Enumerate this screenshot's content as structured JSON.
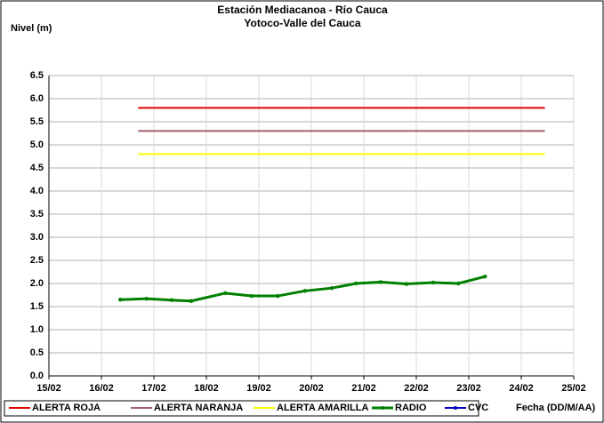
{
  "chart_data": {
    "type": "line",
    "title": "Estación Mediacanoa - Río Cauca",
    "subtitle": "Yotoco-Valle del Cauca",
    "y_label": "Nivel (m)",
    "x_label": "Fecha (DD/M/AA)",
    "xlim": [
      15,
      25
    ],
    "xticks": [
      {
        "value": 15,
        "label": "15/02"
      },
      {
        "value": 16,
        "label": "16/02"
      },
      {
        "value": 17,
        "label": "17/02"
      },
      {
        "value": 18,
        "label": "18/02"
      },
      {
        "value": 19,
        "label": "19/02"
      },
      {
        "value": 20,
        "label": "20/02"
      },
      {
        "value": 21,
        "label": "21/02"
      },
      {
        "value": 22,
        "label": "22/02"
      },
      {
        "value": 23,
        "label": "23/02"
      },
      {
        "value": 24,
        "label": "24/02"
      },
      {
        "value": 25,
        "label": "25/02"
      }
    ],
    "ylim": [
      0,
      6.5
    ],
    "yticks": [
      {
        "value": 0,
        "label": "0.0"
      },
      0.5,
      {
        "value": 1,
        "label": "1.0"
      },
      1.5,
      {
        "value": 2,
        "label": "2.0"
      },
      2.5,
      {
        "value": 3,
        "label": "3.0"
      },
      3.5,
      {
        "value": 4,
        "label": "4.0"
      },
      4.5,
      {
        "value": 5,
        "label": "5.0"
      },
      5.5,
      {
        "value": 6,
        "label": "6.0"
      },
      6.5
    ],
    "grid": true,
    "legend": "bottom",
    "series": [
      {
        "name": "ALERTA ROJA",
        "color": "#e00000",
        "x": [
          16.7,
          24.45
        ],
        "values": [
          5.8,
          5.8
        ]
      },
      {
        "name": "ALERTA NARANJA",
        "color": "#a0606a",
        "x": [
          16.7,
          24.45
        ],
        "values": [
          5.3,
          5.3
        ]
      },
      {
        "name": "ALERTA AMARILLA",
        "color": "#ffff00",
        "x": [
          16.7,
          24.45
        ],
        "values": [
          4.8,
          4.8
        ]
      },
      {
        "name": "RADIO",
        "color": "#008000",
        "x": [
          16.36,
          16.86,
          17.34,
          17.71,
          18.36,
          18.86,
          19.36,
          19.88,
          20.39,
          20.85,
          21.32,
          21.81,
          22.32,
          22.8,
          23.31
        ],
        "values": [
          1.65,
          1.67,
          1.64,
          1.62,
          1.79,
          1.73,
          1.73,
          1.84,
          1.9,
          2.0,
          2.03,
          1.99,
          2.02,
          2.0,
          2.15
        ]
      },
      {
        "name": "CVC",
        "color": "#0000c0",
        "x": [],
        "values": []
      }
    ]
  }
}
